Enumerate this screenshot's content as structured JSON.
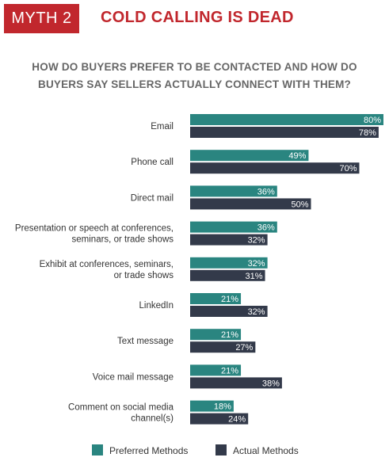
{
  "header": {
    "badge": "MYTH 2",
    "title": "COLD CALLING IS DEAD",
    "subtitle_line1": "HOW DO BUYERS PREFER TO BE CONTACTED AND HOW DO",
    "subtitle_line2": "BUYERS SAY SELLERS ACTUALLY CONNECT WITH THEM?"
  },
  "colors": {
    "accent": "#c1272d",
    "preferred": "#2a8580",
    "actual": "#333a4a"
  },
  "chart_data": {
    "type": "bar",
    "orientation": "horizontal",
    "title": "HOW DO BUYERS PREFER TO BE CONTACTED AND HOW DO BUYERS SAY SELLERS ACTUALLY CONNECT WITH THEM?",
    "xlabel": "",
    "ylabel": "",
    "unit": "%",
    "xlim": [
      0,
      80
    ],
    "grid": false,
    "legend_position": "bottom",
    "categories": [
      [
        "Email"
      ],
      [
        "Phone call"
      ],
      [
        "Direct mail"
      ],
      [
        "Presentation or speech at conferences,",
        "seminars, or trade shows"
      ],
      [
        "Exhibit at conferences, seminars,",
        "or trade shows"
      ],
      [
        "LinkedIn"
      ],
      [
        "Text message"
      ],
      [
        "Voice mail message"
      ],
      [
        "Comment on social media",
        "channel(s)"
      ]
    ],
    "series": [
      {
        "name": "Preferred Methods",
        "values": [
          80,
          49,
          36,
          36,
          32,
          21,
          21,
          21,
          18
        ]
      },
      {
        "name": "Actual Methods",
        "values": [
          78,
          70,
          50,
          32,
          31,
          32,
          27,
          38,
          24
        ]
      }
    ]
  }
}
